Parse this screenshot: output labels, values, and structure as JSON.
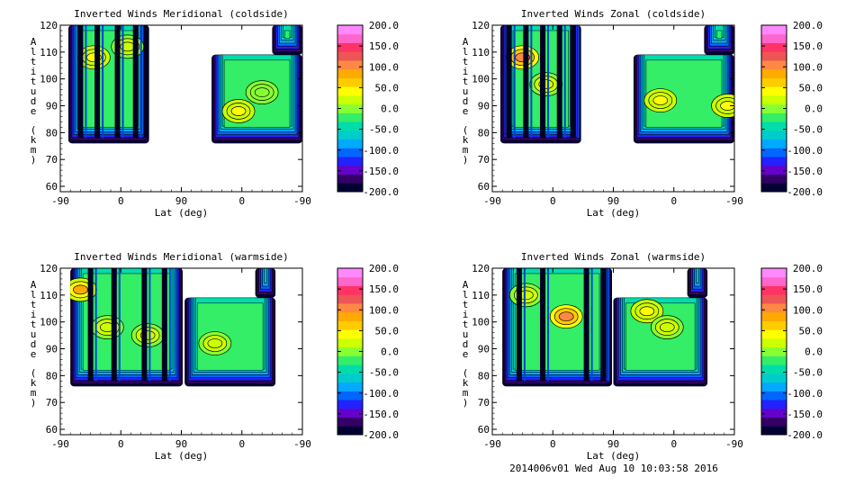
{
  "footer": "2014006v01 Wed Aug 10 10:03:58 2016",
  "colorbar": {
    "labels": [
      "200.0",
      "150.0",
      "100.0",
      "50.0",
      "0.0",
      "-50.0",
      "-100.0",
      "-150.0",
      "-200.0"
    ],
    "colors": [
      "#000033",
      "#330066",
      "#6600cc",
      "#2222ff",
      "#0066ff",
      "#00aaff",
      "#00cccc",
      "#00ddaa",
      "#33ee66",
      "#88ff33",
      "#ccff00",
      "#ffff00",
      "#ffcc00",
      "#ffaa00",
      "#ff8844",
      "#ee5555",
      "#ff3366",
      "#ff66cc",
      "#ff88ff"
    ]
  },
  "chart_data": [
    {
      "type": "heatmap",
      "title": "Inverted Winds Meridional (coldside)",
      "xlabel": "Lat (deg)",
      "ylabel": "Altitude (km)",
      "x_ticks": [
        "-90",
        "0",
        "90",
        "0",
        "-90"
      ],
      "y_ticks": [
        "60",
        "70",
        "80",
        "90",
        "100",
        "110",
        "120"
      ],
      "ylim": [
        58,
        120
      ],
      "colorbar_range": [
        -200,
        200
      ],
      "field": {
        "left_band_x": [
          -78,
          42
        ],
        "left_band_alt": [
          76,
          120
        ],
        "right_band_x": [
          135,
          270
        ],
        "right_band_alt": [
          76,
          109
        ],
        "upper_band_x": [
          225,
          270
        ],
        "upper_band_alt": [
          109,
          120
        ],
        "dominant_value": -20,
        "hotspots": [
          {
            "x": -40,
            "alt": 108,
            "value": 40
          },
          {
            "x": 10,
            "alt": 112,
            "value": 20
          },
          {
            "x": 175,
            "alt": 88,
            "value": 40
          },
          {
            "x": 210,
            "alt": 95,
            "value": 10
          }
        ],
        "stripes": [
          -60,
          -35,
          -5,
          22,
          38
        ]
      }
    },
    {
      "type": "heatmap",
      "title": "Inverted Winds Zonal (coldside)",
      "xlabel": "Lat (deg)",
      "ylabel": "Altitude (km)",
      "x_ticks": [
        "-90",
        "0",
        "90",
        "0",
        "-90"
      ],
      "y_ticks": [
        "60",
        "70",
        "80",
        "90",
        "100",
        "110",
        "120"
      ],
      "ylim": [
        58,
        120
      ],
      "colorbar_range": [
        -200,
        200
      ],
      "field": {
        "left_band_x": [
          -78,
          42
        ],
        "left_band_alt": [
          76,
          120
        ],
        "right_band_x": [
          120,
          270
        ],
        "right_band_alt": [
          76,
          109
        ],
        "upper_band_x": [
          225,
          270
        ],
        "upper_band_alt": [
          109,
          120
        ],
        "dominant_value": -25,
        "hotspots": [
          {
            "x": -45,
            "alt": 108,
            "value": 110
          },
          {
            "x": -10,
            "alt": 98,
            "value": 30
          },
          {
            "x": 160,
            "alt": 92,
            "value": 40
          },
          {
            "x": 260,
            "alt": 90,
            "value": 50
          }
        ],
        "stripes": [
          -65,
          -40,
          -15,
          10,
          30
        ]
      }
    },
    {
      "type": "heatmap",
      "title": "Inverted Winds Meridional (warmside)",
      "xlabel": "Lat (deg)",
      "ylabel": "Altitude (km)",
      "x_ticks": [
        "-90",
        "0",
        "90",
        "0",
        "-90"
      ],
      "y_ticks": [
        "60",
        "70",
        "80",
        "90",
        "100",
        "110",
        "120"
      ],
      "ylim": [
        58,
        120
      ],
      "colorbar_range": [
        -200,
        200
      ],
      "field": {
        "left_band_x": [
          -75,
          92
        ],
        "left_band_alt": [
          76,
          120
        ],
        "right_band_x": [
          95,
          230
        ],
        "right_band_alt": [
          76,
          109
        ],
        "upper_band_x": [
          200,
          230
        ],
        "upper_band_alt": [
          109,
          120
        ],
        "dominant_value": -20,
        "hotspots": [
          {
            "x": -60,
            "alt": 112,
            "value": 80
          },
          {
            "x": -20,
            "alt": 98,
            "value": 30
          },
          {
            "x": 40,
            "alt": 95,
            "value": 30
          },
          {
            "x": 140,
            "alt": 92,
            "value": 20
          }
        ],
        "stripes": [
          -45,
          -10,
          35,
          65
        ]
      }
    },
    {
      "type": "heatmap",
      "title": "Inverted Winds Zonal (warmside)",
      "xlabel": "Lat (deg)",
      "ylabel": "Altitude (km)",
      "x_ticks": [
        "-90",
        "0",
        "90",
        "0",
        "-90"
      ],
      "y_ticks": [
        "60",
        "70",
        "80",
        "90",
        "100",
        "110",
        "120"
      ],
      "ylim": [
        58,
        120
      ],
      "colorbar_range": [
        -200,
        200
      ],
      "field": {
        "left_band_x": [
          -75,
          88
        ],
        "left_band_alt": [
          76,
          120
        ],
        "right_band_x": [
          90,
          230
        ],
        "right_band_alt": [
          76,
          109
        ],
        "upper_band_x": [
          200,
          230
        ],
        "upper_band_alt": [
          109,
          120
        ],
        "dominant_value": -30,
        "hotspots": [
          {
            "x": 20,
            "alt": 102,
            "value": 110
          },
          {
            "x": -40,
            "alt": 110,
            "value": 30
          },
          {
            "x": 140,
            "alt": 104,
            "value": 50
          },
          {
            "x": 170,
            "alt": 98,
            "value": 20
          }
        ],
        "stripes": [
          -50,
          -15,
          50,
          75
        ]
      }
    }
  ]
}
